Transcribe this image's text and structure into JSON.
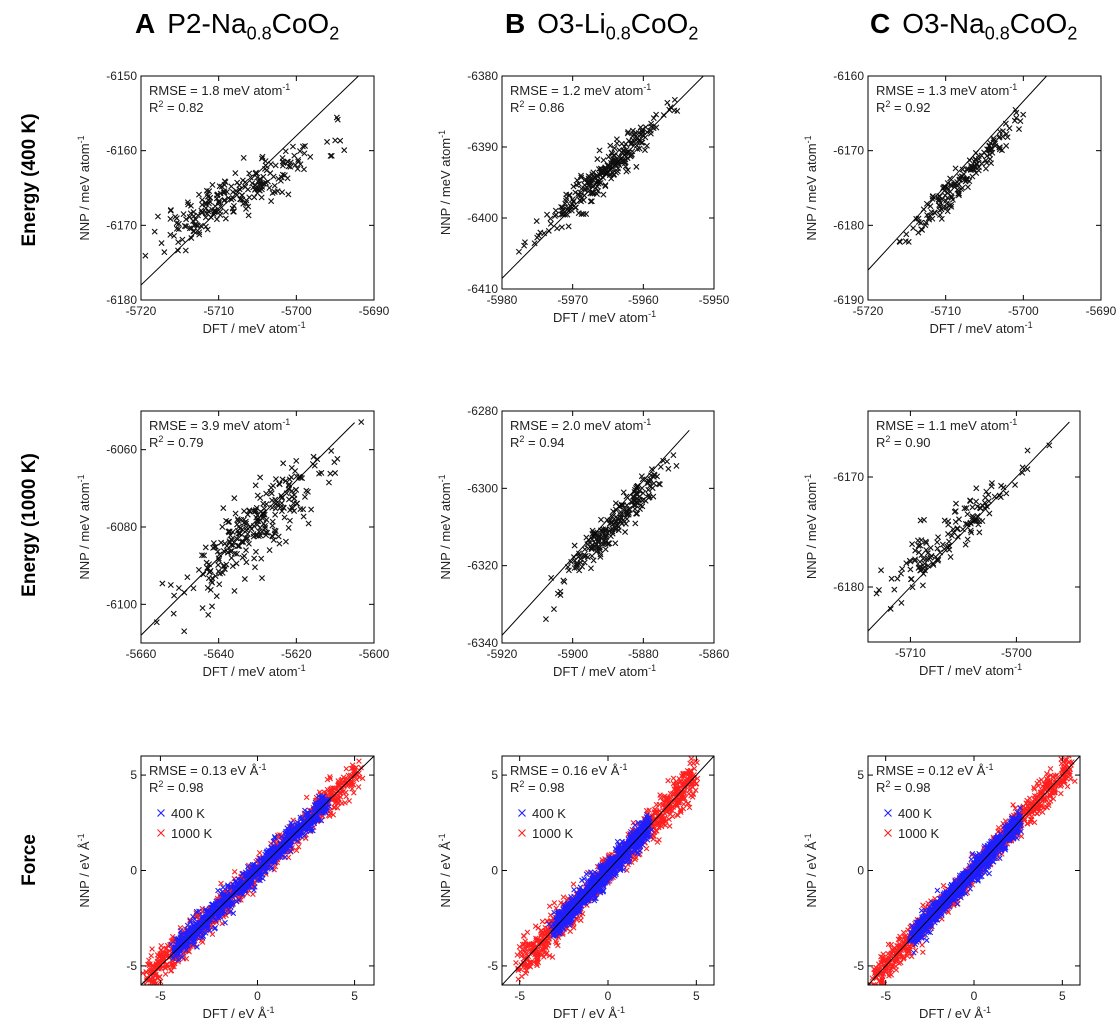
{
  "columns": [
    {
      "letter": "A",
      "prefix": "P2-Na",
      "sub": "0.8",
      "mid": "CoO",
      "sub2": "2"
    },
    {
      "letter": "B",
      "prefix": "O3-Li",
      "sub": "0.8",
      "mid": "CoO",
      "sub2": "2"
    },
    {
      "letter": "C",
      "prefix": "O3-Na",
      "sub": "0.8",
      "mid": "CoO",
      "sub2": "2"
    }
  ],
  "rows": [
    "Energy (400 K)",
    "Energy (1000 K)",
    "Force"
  ],
  "colors": {
    "line": "#000000",
    "marker_black": "#111111",
    "blue": "#1f1fff",
    "red": "#ff1f1f"
  },
  "chart_data": [
    {
      "id": "A-400",
      "type": "scatter",
      "xlabel": "DFT / meV atom",
      "xlabel_sup": "-1",
      "ylabel": "NNP / meV atom",
      "ylabel_sup": "-1",
      "xlim": [
        -5720,
        -5690
      ],
      "ylim": [
        -6180,
        -6150
      ],
      "xticks": [
        -5720,
        -5710,
        -5700,
        -5690
      ],
      "yticks": [
        -6180,
        -6170,
        -6160,
        -6150
      ],
      "stats": {
        "rmse_value": "1.8",
        "rmse_unit": "meV atom",
        "rmse_sup": "-1",
        "r2": "0.82"
      },
      "diag": [
        [
          -5720,
          -6178
        ],
        [
          -5690,
          -6148
        ]
      ],
      "cloud": {
        "x0": -5716,
        "x1": -5692,
        "spread_x": 0.55,
        "spread_y": 1.6,
        "slope": 0.55,
        "n": 230,
        "seed": 11,
        "mx": -5708,
        "my": -6166
      }
    },
    {
      "id": "B-400",
      "type": "scatter",
      "xlabel": "DFT / meV atom",
      "xlabel_sup": "-1",
      "ylabel": "NNP / meV atom",
      "ylabel_sup": "-1",
      "xlim": [
        -5980,
        -5950
      ],
      "ylim": [
        -6410,
        -6380
      ],
      "xticks": [
        -5980,
        -5970,
        -5960,
        -5950
      ],
      "yticks": [
        -6410,
        -6400,
        -6390,
        -6380
      ],
      "stats": {
        "rmse_value": "1.2",
        "rmse_unit": "meV atom",
        "rmse_sup": "-1",
        "r2": "0.86"
      },
      "diag": [
        [
          -5980,
          -6408.5
        ],
        [
          -5950,
          -6378.5
        ]
      ],
      "cloud": {
        "x0": -5976,
        "x1": -5958,
        "spread_x": 0.5,
        "spread_y": 1.2,
        "slope": 0.9,
        "n": 260,
        "seed": 23,
        "mx": -5966,
        "my": -6394
      }
    },
    {
      "id": "C-400",
      "type": "scatter",
      "xlabel": "DFT / meV atom",
      "xlabel_sup": "-1",
      "ylabel": "NNP / meV atom",
      "ylabel_sup": "-1",
      "xlim": [
        -5720,
        -5690
      ],
      "ylim": [
        -6190,
        -6160
      ],
      "xticks": [
        -5720,
        -5710,
        -5700,
        -5690
      ],
      "yticks": [
        -6190,
        -6180,
        -6170,
        -6160
      ],
      "stats": {
        "rmse_value": "1.3",
        "rmse_unit": "meV atom",
        "rmse_sup": "-1",
        "r2": "0.92"
      },
      "diag": [
        [
          -5720,
          -6186
        ],
        [
          -5697,
          -6160
        ]
      ],
      "cloud": {
        "x0": -5714,
        "x1": -5700,
        "spread_x": 0.4,
        "spread_y": 1.0,
        "slope": 1.1,
        "n": 170,
        "seed": 37,
        "mx": -5708,
        "my": -6174
      }
    },
    {
      "id": "A-1000",
      "type": "scatter",
      "xlabel": "DFT / meV atom",
      "xlabel_sup": "-1",
      "ylabel": "NNP / meV atom",
      "ylabel_sup": "-1",
      "xlim": [
        -5660,
        -5600
      ],
      "ylim": [
        -6110,
        -6050
      ],
      "xticks": [
        -5660,
        -5640,
        -5620,
        -5600
      ],
      "yticks": [
        -6100,
        -6080,
        -6060
      ],
      "stats": {
        "rmse_value": "3.9",
        "rmse_unit": "meV atom",
        "rmse_sup": "-1",
        "r2": "0.79"
      },
      "diag": [
        [
          -5660,
          -6108
        ],
        [
          -5605,
          -6053
        ]
      ],
      "cloud": {
        "x0": -5651,
        "x1": -5610,
        "spread_x": 1.5,
        "spread_y": 5.0,
        "slope": 0.85,
        "n": 260,
        "seed": 53,
        "mx": -5630,
        "my": -6080
      }
    },
    {
      "id": "B-1000",
      "type": "scatter",
      "xlabel": "DFT / meV atom",
      "xlabel_sup": "-1",
      "ylabel": "NNP / meV atom",
      "ylabel_sup": "-1",
      "xlim": [
        -5920,
        -5860
      ],
      "ylim": [
        -6340,
        -6280
      ],
      "xticks": [
        -5920,
        -5900,
        -5880,
        -5860
      ],
      "yticks": [
        -6340,
        -6320,
        -6300,
        -6280
      ],
      "stats": {
        "rmse_value": "2.0",
        "rmse_unit": "meV atom",
        "rmse_sup": "-1",
        "r2": "0.94"
      },
      "diag": [
        [
          -5920,
          -6338
        ],
        [
          -5867,
          -6285
        ]
      ],
      "cloud": {
        "x0": -5904,
        "x1": -5870,
        "spread_x": 1.0,
        "spread_y": 2.4,
        "slope": 1.0,
        "n": 230,
        "seed": 71,
        "mx": -5888,
        "my": -6309
      }
    },
    {
      "id": "C-1000",
      "type": "scatter",
      "xlabel": "DFT / meV atom",
      "xlabel_sup": "-1",
      "ylabel": "NNP / meV atom",
      "ylabel_sup": "-1",
      "xlim": [
        -5714,
        -5694
      ],
      "ylim": [
        -6185,
        -6164
      ],
      "xticks": [
        -5710,
        -5700
      ],
      "yticks": [
        -6180,
        -6170
      ],
      "stats": {
        "rmse_value": "1.1",
        "rmse_unit": "meV atom",
        "rmse_sup": "-1",
        "r2": "0.90"
      },
      "diag": [
        [
          -5714,
          -6184
        ],
        [
          -5695,
          -6165
        ]
      ],
      "cloud": {
        "x0": -5712,
        "x1": -5698,
        "spread_x": 0.35,
        "spread_y": 1.2,
        "slope": 0.85,
        "n": 140,
        "seed": 89,
        "mx": -5706,
        "my": -6175
      }
    },
    {
      "id": "A-force",
      "type": "scatter",
      "xlabel": "DFT / eV Å",
      "xlabel_sup": "-1",
      "ylabel": "NNP / eV Å",
      "ylabel_sup": "-1",
      "xlim": [
        -6,
        6
      ],
      "ylim": [
        -6,
        6
      ],
      "xticks": [
        -5,
        0,
        5
      ],
      "yticks": [
        -5,
        0,
        5
      ],
      "stats": {
        "rmse_value": "0.13",
        "rmse_unit": "eV Å",
        "rmse_sup": "-1",
        "r2": "0.98"
      },
      "legend": [
        "400 K",
        "1000 K"
      ],
      "diag": [
        [
          -6,
          -6
        ],
        [
          6,
          6
        ]
      ],
      "force": {
        "blue_range": [
          -4.3,
          3.5
        ],
        "red_range": [
          -5.8,
          5.2
        ],
        "blue_w": 0.28,
        "red_w": 0.45,
        "seed": 101
      }
    },
    {
      "id": "B-force",
      "type": "scatter",
      "xlabel": "DFT / eV Å",
      "xlabel_sup": "-1",
      "ylabel": "NNP / eV Å",
      "ylabel_sup": "-1",
      "xlim": [
        -6,
        6
      ],
      "ylim": [
        -6,
        6
      ],
      "xticks": [
        -5,
        0,
        5
      ],
      "yticks": [
        -5,
        0,
        5
      ],
      "stats": {
        "rmse_value": "0.16",
        "rmse_unit": "eV Å",
        "rmse_sup": "-1",
        "r2": "0.98"
      },
      "legend": [
        "400 K",
        "1000 K"
      ],
      "diag": [
        [
          -6,
          -6
        ],
        [
          6,
          6
        ]
      ],
      "force": {
        "blue_range": [
          -3.0,
          2.3
        ],
        "red_range": [
          -5.0,
          5.0
        ],
        "blue_w": 0.3,
        "red_w": 0.55,
        "seed": 131
      }
    },
    {
      "id": "C-force",
      "type": "scatter",
      "xlabel": "DFT / eV Å",
      "xlabel_sup": "-1",
      "ylabel": "NNP / eV Å",
      "ylabel_sup": "-1",
      "xlim": [
        -6,
        6
      ],
      "ylim": [
        -6,
        6
      ],
      "xticks": [
        -5,
        0,
        5
      ],
      "yticks": [
        -5,
        0,
        5
      ],
      "stats": {
        "rmse_value": "0.12",
        "rmse_unit": "eV Å",
        "rmse_sup": "-1",
        "r2": "0.98"
      },
      "legend": [
        "400 K",
        "1000 K"
      ],
      "diag": [
        [
          -6,
          -6
        ],
        [
          6,
          6
        ]
      ],
      "force": {
        "blue_range": [
          -3.5,
          2.6
        ],
        "red_range": [
          -5.6,
          5.4
        ],
        "blue_w": 0.27,
        "red_w": 0.42,
        "seed": 157
      }
    }
  ]
}
